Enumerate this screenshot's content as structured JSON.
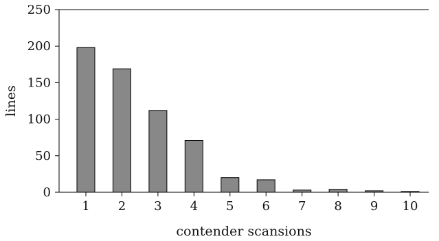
{
  "chart_data": {
    "type": "bar",
    "categories": [
      "1",
      "2",
      "3",
      "4",
      "5",
      "6",
      "7",
      "8",
      "9",
      "10"
    ],
    "values": [
      198,
      169,
      112,
      71,
      20,
      17,
      3,
      4,
      2,
      1
    ],
    "xlabel": "contender scansions",
    "ylabel": "lines",
    "ylim": [
      0,
      250
    ],
    "yticks": [
      0,
      50,
      100,
      150,
      200,
      250
    ],
    "grid": false,
    "bar_color": "#888888"
  }
}
